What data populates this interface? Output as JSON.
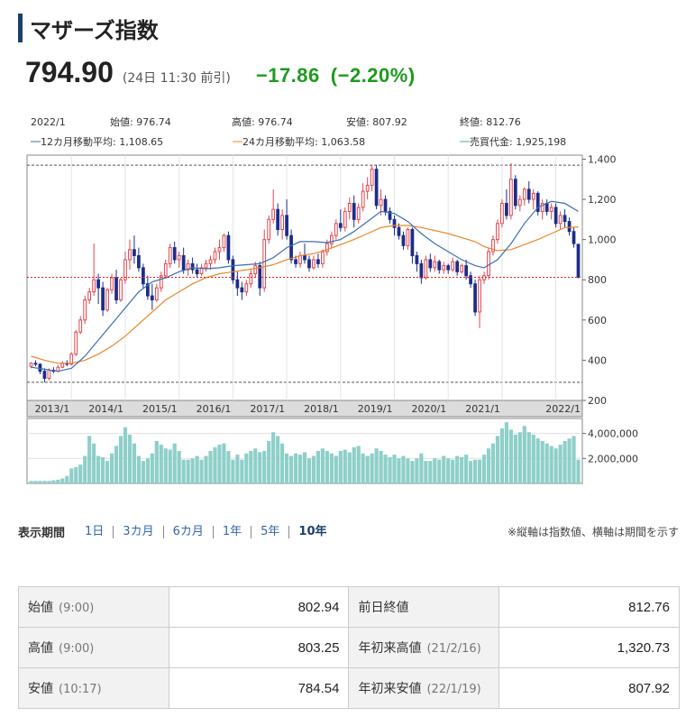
{
  "header": {
    "title": "マザーズ指数"
  },
  "quote": {
    "price": "794.90",
    "time": "(24日 11:30 前引)",
    "change": "−17.86",
    "change_pct": "(−2.20%)"
  },
  "chart_data": {
    "type": "candlestick",
    "info": {
      "date": "2022/1",
      "open": "始値: 976.74",
      "high": "高値: 976.74",
      "low": "安値: 807.92",
      "close": "終値: 812.76",
      "ma12": "12カ月移動平均: 1,108.65",
      "ma24": "24カ月移動平均: 1,063.58",
      "volume": "売買代金: 1,925,198"
    },
    "ylim": [
      200,
      1420
    ],
    "y_ticks": [
      "1,400",
      "1,200",
      "1,000",
      "800",
      "600",
      "400",
      "200"
    ],
    "y_tick_values": [
      1400,
      1200,
      1000,
      800,
      600,
      400,
      200
    ],
    "x_labels": [
      "2013/1",
      "2014/1",
      "2015/1",
      "2016/1",
      "2017/1",
      "2018/1",
      "2019/1",
      "2020/1",
      "2021/1",
      "2022/1"
    ],
    "ref_lines": [
      1370,
      290
    ],
    "current_line": 812,
    "vol_ticks": [
      "4,000,000",
      "2,000,000"
    ],
    "vol_tick_values": [
      4000000,
      2000000
    ],
    "vol_max": 5200000,
    "colors": {
      "up": "#e0454d",
      "down": "#1c2d8a",
      "ma12": "#3b6fb0",
      "ma24": "#e8862a",
      "volume": "#8ecfc9",
      "current": "#e02020"
    },
    "candles": [
      [
        370,
        390,
        360,
        385
      ],
      [
        385,
        400,
        370,
        380
      ],
      [
        380,
        385,
        330,
        345
      ],
      [
        345,
        360,
        290,
        310
      ],
      [
        310,
        360,
        300,
        350
      ],
      [
        350,
        365,
        335,
        345
      ],
      [
        345,
        375,
        340,
        365
      ],
      [
        365,
        395,
        360,
        385
      ],
      [
        385,
        400,
        370,
        380
      ],
      [
        380,
        440,
        375,
        430
      ],
      [
        430,
        550,
        420,
        540
      ],
      [
        540,
        620,
        530,
        600
      ],
      [
        600,
        720,
        580,
        700
      ],
      [
        700,
        760,
        680,
        740
      ],
      [
        740,
        980,
        720,
        800
      ],
      [
        800,
        830,
        680,
        760
      ],
      [
        760,
        790,
        620,
        650
      ],
      [
        650,
        760,
        640,
        750
      ],
      [
        750,
        830,
        730,
        810
      ],
      [
        810,
        850,
        680,
        700
      ],
      [
        700,
        810,
        690,
        800
      ],
      [
        800,
        940,
        780,
        900
      ],
      [
        900,
        1000,
        850,
        950
      ],
      [
        950,
        1020,
        880,
        920
      ],
      [
        920,
        960,
        840,
        860
      ],
      [
        860,
        880,
        760,
        780
      ],
      [
        780,
        820,
        700,
        720
      ],
      [
        720,
        780,
        650,
        700
      ],
      [
        700,
        780,
        690,
        760
      ],
      [
        760,
        840,
        740,
        820
      ],
      [
        820,
        900,
        810,
        880
      ],
      [
        880,
        980,
        860,
        960
      ],
      [
        960,
        990,
        880,
        900
      ],
      [
        900,
        940,
        860,
        920
      ],
      [
        920,
        960,
        830,
        850
      ],
      [
        850,
        900,
        820,
        880
      ],
      [
        880,
        910,
        830,
        850
      ],
      [
        850,
        880,
        810,
        830
      ],
      [
        830,
        880,
        820,
        860
      ],
      [
        860,
        900,
        840,
        880
      ],
      [
        880,
        920,
        850,
        900
      ],
      [
        900,
        960,
        880,
        940
      ],
      [
        940,
        1000,
        900,
        960
      ],
      [
        960,
        1030,
        940,
        1020
      ],
      [
        1020,
        1040,
        880,
        900
      ],
      [
        900,
        920,
        780,
        800
      ],
      [
        800,
        840,
        720,
        760
      ],
      [
        760,
        790,
        700,
        740
      ],
      [
        740,
        800,
        720,
        780
      ],
      [
        780,
        850,
        760,
        830
      ],
      [
        830,
        890,
        810,
        870
      ],
      [
        870,
        890,
        720,
        760
      ],
      [
        760,
        1050,
        740,
        1000
      ],
      [
        1000,
        1120,
        980,
        1100
      ],
      [
        1100,
        1250,
        1080,
        1150
      ],
      [
        1150,
        1180,
        1020,
        1050
      ],
      [
        1050,
        1150,
        1000,
        1120
      ],
      [
        1120,
        1200,
        1000,
        1020
      ],
      [
        1020,
        1050,
        880,
        900
      ],
      [
        900,
        920,
        860,
        880
      ],
      [
        880,
        940,
        860,
        920
      ],
      [
        920,
        980,
        880,
        900
      ],
      [
        900,
        920,
        840,
        860
      ],
      [
        860,
        920,
        850,
        900
      ],
      [
        900,
        930,
        860,
        880
      ],
      [
        880,
        950,
        860,
        940
      ],
      [
        940,
        1000,
        920,
        980
      ],
      [
        980,
        1040,
        960,
        1020
      ],
      [
        1020,
        1100,
        1000,
        1080
      ],
      [
        1080,
        1150,
        1040,
        1060
      ],
      [
        1060,
        1160,
        1040,
        1140
      ],
      [
        1140,
        1210,
        1100,
        1180
      ],
      [
        1180,
        1220,
        1060,
        1100
      ],
      [
        1100,
        1180,
        1080,
        1160
      ],
      [
        1160,
        1280,
        1140,
        1240
      ],
      [
        1240,
        1310,
        1200,
        1270
      ],
      [
        1270,
        1370,
        1240,
        1350
      ],
      [
        1350,
        1370,
        1150,
        1170
      ],
      [
        1170,
        1250,
        1120,
        1200
      ],
      [
        1200,
        1220,
        1120,
        1140
      ],
      [
        1140,
        1160,
        1080,
        1100
      ],
      [
        1100,
        1120,
        1020,
        1060
      ],
      [
        1060,
        1080,
        1000,
        1020
      ],
      [
        1020,
        1040,
        950,
        970
      ],
      [
        970,
        1060,
        950,
        1050
      ],
      [
        1050,
        1060,
        880,
        920
      ],
      [
        920,
        940,
        840,
        880
      ],
      [
        880,
        900,
        780,
        810
      ],
      [
        810,
        920,
        800,
        900
      ],
      [
        900,
        930,
        840,
        860
      ],
      [
        860,
        920,
        840,
        890
      ],
      [
        890,
        900,
        830,
        850
      ],
      [
        850,
        890,
        830,
        870
      ],
      [
        870,
        880,
        830,
        850
      ],
      [
        850,
        910,
        840,
        890
      ],
      [
        890,
        900,
        820,
        840
      ],
      [
        840,
        880,
        830,
        870
      ],
      [
        870,
        900,
        800,
        820
      ],
      [
        820,
        840,
        760,
        780
      ],
      [
        780,
        800,
        620,
        640
      ],
      [
        640,
        820,
        560,
        800
      ],
      [
        800,
        840,
        780,
        820
      ],
      [
        820,
        960,
        800,
        940
      ],
      [
        940,
        1020,
        920,
        1000
      ],
      [
        1000,
        1100,
        980,
        1080
      ],
      [
        1080,
        1200,
        1060,
        1180
      ],
      [
        1180,
        1250,
        1100,
        1120
      ],
      [
        1120,
        1380,
        1100,
        1300
      ],
      [
        1300,
        1320,
        1150,
        1170
      ],
      [
        1170,
        1220,
        1140,
        1200
      ],
      [
        1200,
        1260,
        1170,
        1250
      ],
      [
        1250,
        1290,
        1180,
        1200
      ],
      [
        1200,
        1250,
        1150,
        1230
      ],
      [
        1230,
        1240,
        1120,
        1140
      ],
      [
        1140,
        1200,
        1100,
        1180
      ],
      [
        1180,
        1200,
        1120,
        1140
      ],
      [
        1140,
        1180,
        1100,
        1160
      ],
      [
        1160,
        1180,
        1060,
        1080
      ],
      [
        1080,
        1140,
        1050,
        1120
      ],
      [
        1120,
        1150,
        1060,
        1090
      ],
      [
        1090,
        1110,
        1020,
        1040
      ],
      [
        1040,
        1060,
        960,
        980
      ],
      [
        976.74,
        976.74,
        807.92,
        812.76
      ]
    ],
    "ma12": [
      [
        0,
        365
      ],
      [
        3,
        355
      ],
      [
        6,
        345
      ],
      [
        9,
        360
      ],
      [
        12,
        420
      ],
      [
        15,
        500
      ],
      [
        18,
        580
      ],
      [
        21,
        660
      ],
      [
        24,
        740
      ],
      [
        27,
        790
      ],
      [
        30,
        810
      ],
      [
        33,
        840
      ],
      [
        36,
        860
      ],
      [
        39,
        855
      ],
      [
        42,
        860
      ],
      [
        45,
        870
      ],
      [
        48,
        875
      ],
      [
        51,
        880
      ],
      [
        54,
        910
      ],
      [
        57,
        960
      ],
      [
        60,
        990
      ],
      [
        63,
        990
      ],
      [
        66,
        985
      ],
      [
        69,
        1000
      ],
      [
        72,
        1040
      ],
      [
        75,
        1090
      ],
      [
        78,
        1140
      ],
      [
        81,
        1130
      ],
      [
        84,
        1090
      ],
      [
        87,
        1030
      ],
      [
        90,
        980
      ],
      [
        93,
        940
      ],
      [
        96,
        900
      ],
      [
        99,
        870
      ],
      [
        101,
        860
      ],
      [
        104,
        900
      ],
      [
        107,
        980
      ],
      [
        110,
        1080
      ],
      [
        113,
        1160
      ],
      [
        116,
        1190
      ],
      [
        119,
        1180
      ],
      [
        122,
        1140
      ]
    ],
    "ma24": [
      [
        0,
        420
      ],
      [
        3,
        400
      ],
      [
        6,
        385
      ],
      [
        9,
        385
      ],
      [
        12,
        400
      ],
      [
        15,
        430
      ],
      [
        18,
        470
      ],
      [
        21,
        520
      ],
      [
        24,
        580
      ],
      [
        27,
        640
      ],
      [
        30,
        700
      ],
      [
        33,
        740
      ],
      [
        36,
        780
      ],
      [
        39,
        810
      ],
      [
        42,
        830
      ],
      [
        45,
        840
      ],
      [
        48,
        850
      ],
      [
        51,
        860
      ],
      [
        54,
        875
      ],
      [
        57,
        900
      ],
      [
        60,
        920
      ],
      [
        63,
        930
      ],
      [
        66,
        950
      ],
      [
        69,
        975
      ],
      [
        72,
        1000
      ],
      [
        75,
        1030
      ],
      [
        78,
        1060
      ],
      [
        81,
        1070
      ],
      [
        84,
        1070
      ],
      [
        87,
        1060
      ],
      [
        90,
        1045
      ],
      [
        93,
        1030
      ],
      [
        96,
        1010
      ],
      [
        99,
        990
      ],
      [
        101,
        965
      ],
      [
        104,
        945
      ],
      [
        107,
        950
      ],
      [
        110,
        975
      ],
      [
        113,
        1000
      ],
      [
        116,
        1030
      ],
      [
        119,
        1060
      ],
      [
        122,
        1063
      ]
    ],
    "volumes": [
      0.2,
      0.2,
      0.2,
      0.2,
      0.2,
      0.25,
      0.3,
      0.4,
      0.6,
      1.2,
      1.3,
      1.5,
      2.2,
      3.8,
      3.2,
      2.2,
      2.1,
      1.8,
      2.4,
      3.0,
      3.8,
      4.5,
      3.9,
      3.2,
      2.2,
      1.8,
      2.0,
      2.4,
      3.4,
      3.1,
      2.8,
      2.7,
      3.2,
      2.6,
      1.9,
      1.9,
      2.0,
      2.2,
      1.9,
      2.2,
      2.6,
      2.9,
      3.1,
      3.2,
      2.6,
      1.9,
      2.3,
      1.9,
      2.4,
      2.6,
      2.8,
      2.5,
      2.6,
      3.4,
      4.1,
      3.8,
      3.2,
      2.4,
      2.2,
      2.4,
      2.3,
      2.5,
      2.0,
      2.2,
      2.6,
      2.8,
      2.6,
      2.4,
      2.2,
      2.6,
      2.7,
      2.5,
      2.9,
      3.0,
      2.4,
      2.2,
      2.4,
      2.8,
      2.6,
      2.3,
      2.1,
      2.3,
      2.0,
      2.2,
      2.0,
      1.8,
      2.0,
      2.4,
      1.8,
      1.8,
      2.0,
      1.9,
      2.2,
      2.0,
      1.9,
      2.2,
      2.1,
      2.3,
      1.8,
      1.9,
      1.9,
      2.3,
      2.8,
      3.2,
      3.8,
      4.4,
      4.9,
      4.3,
      3.9,
      4.1,
      4.6,
      4.1,
      3.9,
      3.6,
      3.4,
      3.2,
      3.0,
      2.8,
      3.1,
      3.4,
      3.6,
      3.8,
      1.9
    ]
  },
  "period": {
    "label": "表示期間",
    "options": [
      "1日",
      "3カ月",
      "6カ月",
      "1年",
      "5年",
      "10年"
    ],
    "note": "※縦軸は指数値、横軸は期間を示す"
  },
  "stats": {
    "rows": [
      {
        "k1": "始値",
        "s1": "(9:00)",
        "v1": "802.94",
        "k2": "前日終値",
        "s2": "",
        "v2": "812.76"
      },
      {
        "k1": "高値",
        "s1": "(9:00)",
        "v1": "803.25",
        "k2": "年初来高値",
        "s2": "(21/2/16)",
        "v2": "1,320.73"
      },
      {
        "k1": "安値",
        "s1": "(10:17)",
        "v1": "784.54",
        "k2": "年初来安値",
        "s2": "(22/1/19)",
        "v2": "807.92"
      }
    ]
  }
}
